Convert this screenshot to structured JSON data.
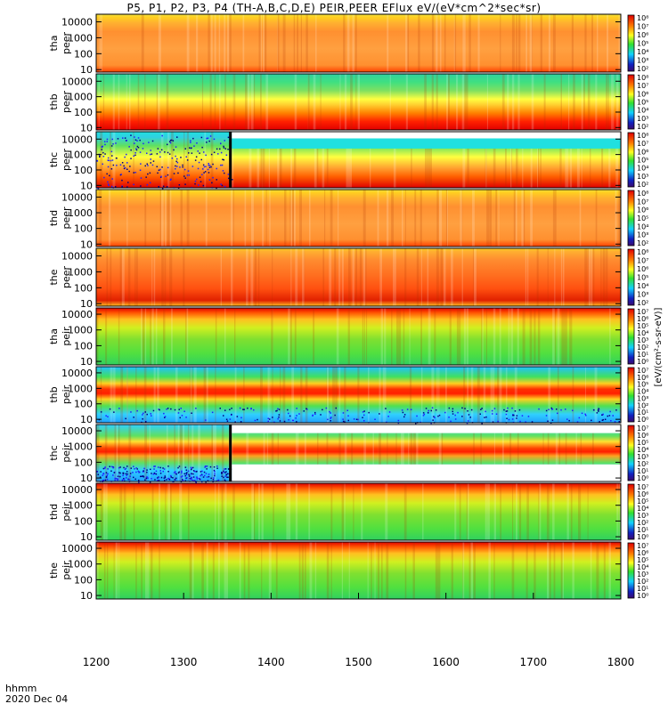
{
  "title": "P5, P1, P2, P3, P4 (TH-A,B,C,D,E) PEIR,PEER EFlux eV/(eV*cm^2*sec*sr)",
  "time_axis": {
    "label": "hhmm",
    "date": "2020 Dec 04",
    "ticks": [
      "1200",
      "1300",
      "1400",
      "1500",
      "1600",
      "1700",
      "1800"
    ]
  },
  "colorbar_unit_label": "[eV/(cm²-s-sr-eV)]",
  "colorbar_ticks": {
    "peer": [
      "10²",
      "10³",
      "10⁴",
      "10⁵",
      "10⁶",
      "10⁷",
      "10⁸"
    ],
    "peir": [
      "10⁰",
      "10¹",
      "10²",
      "10³",
      "10⁴",
      "10⁵",
      "10⁶",
      "10⁷"
    ]
  },
  "chart_data": {
    "type": "heatmap",
    "x_range": [
      1200,
      1800
    ],
    "x_unit": "hhmm",
    "y_scale": "log",
    "y_ticks": [
      "10",
      "100",
      "1000",
      "10000"
    ],
    "panels": [
      {
        "probe": "tha",
        "species": "peer",
        "label_probe": "tha",
        "label_species": "peer",
        "ylim": [
          7,
          30000
        ],
        "peak_energy_eV": 300,
        "profile": "broad-warm"
      },
      {
        "probe": "thb",
        "species": "peer",
        "label_probe": "thb",
        "label_species": "peer",
        "ylim": [
          7,
          30000
        ],
        "peak_energy_eV": 20,
        "profile": "bands"
      },
      {
        "probe": "thc",
        "species": "peer",
        "label_probe": "thc",
        "label_species": "peer",
        "ylim": [
          7,
          30000
        ],
        "peak_energy_eV": 50,
        "profile": "lowband-gap",
        "data_gap_start": 1355
      },
      {
        "probe": "thd",
        "species": "peer",
        "label_probe": "thd",
        "label_species": "peer",
        "ylim": [
          7,
          30000
        ],
        "peak_energy_eV": 300,
        "profile": "broad-warm"
      },
      {
        "probe": "the",
        "species": "peer",
        "label_probe": "the",
        "label_species": "peer",
        "ylim": [
          7,
          30000
        ],
        "peak_energy_eV": 400,
        "profile": "broad-hot"
      },
      {
        "probe": "tha",
        "species": "peir",
        "label_probe": "tha",
        "label_species": "peir",
        "ylim": [
          6,
          25000
        ],
        "peak_energy_eV": 10000,
        "profile": "top-red"
      },
      {
        "probe": "thb",
        "species": "peir",
        "label_probe": "thb",
        "label_species": "peir",
        "ylim": [
          6,
          25000
        ],
        "peak_energy_eV": 800,
        "profile": "mid-band-noisy"
      },
      {
        "probe": "thc",
        "species": "peir",
        "label_probe": "thc",
        "label_species": "peir",
        "ylim": [
          6,
          25000
        ],
        "peak_energy_eV": 600,
        "profile": "mid-band-gap",
        "data_gap_start": 1355
      },
      {
        "probe": "thd",
        "species": "peir",
        "label_probe": "thd",
        "label_species": "peir",
        "ylim": [
          6,
          25000
        ],
        "peak_energy_eV": 15000,
        "profile": "top-red"
      },
      {
        "probe": "the",
        "species": "peir",
        "label_probe": "the",
        "label_species": "peir",
        "ylim": [
          6,
          25000
        ],
        "peak_energy_eV": 15000,
        "profile": "top-red"
      }
    ]
  }
}
